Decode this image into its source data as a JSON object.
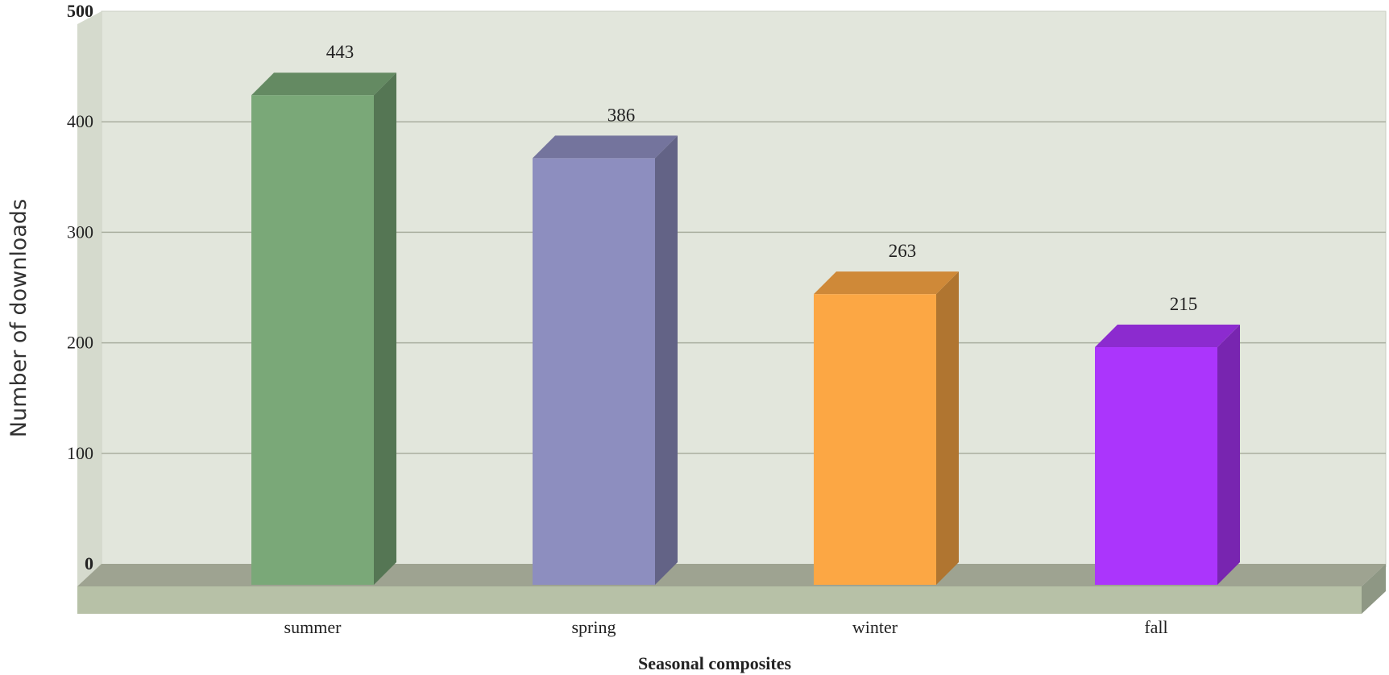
{
  "chart_data": {
    "type": "bar",
    "style": "3d",
    "title": "",
    "xlabel": "Seasonal composites",
    "ylabel": "Number of downloads",
    "ylim": [
      0,
      500
    ],
    "yticks": [
      "0",
      "100",
      "200",
      "300",
      "400",
      "500"
    ],
    "categories": [
      "summer",
      "spring",
      "winter",
      "fall"
    ],
    "values": [
      443,
      386,
      263,
      215
    ],
    "value_labels": [
      "443",
      "386",
      "263",
      "215"
    ],
    "grid": true,
    "legend": "none",
    "colors": {
      "plot_background": "#e2e6dc",
      "floor": "#b7c1a7",
      "summer": "#7aa878",
      "spring": "#8d8ebf",
      "winter": "#fca744",
      "fall": "#ab35fc"
    }
  }
}
